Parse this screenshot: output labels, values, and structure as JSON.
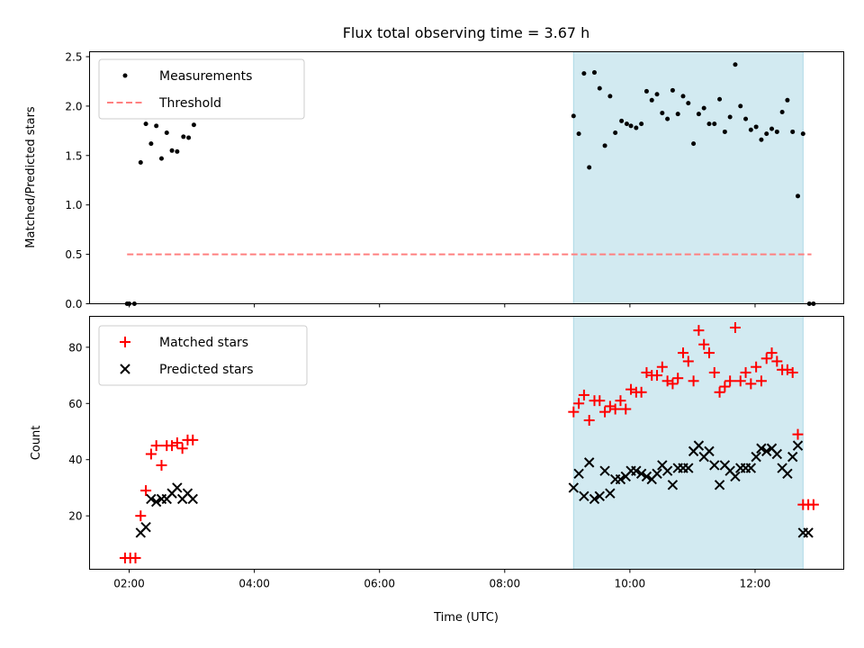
{
  "chart_data": [
    {
      "type": "scatter",
      "title": "Flux total observing time = 3.67 h",
      "ylabel": "Matched/Predicted stars",
      "xlim": [
        "01:22",
        "13:25"
      ],
      "ylim": [
        0,
        2.55
      ],
      "yticks": [
        "0.0",
        "0.5",
        "1.0",
        "1.5",
        "2.0",
        "2.5"
      ],
      "legend_position": "upper-left",
      "shaded_region": {
        "x_start": "09:06",
        "x_end": "12:46",
        "color": "#add8e6"
      },
      "threshold": {
        "name": "Threshold",
        "value": 0.5,
        "x_start": "01:58",
        "x_end": "12:54",
        "color": "#ff8080"
      },
      "series": [
        {
          "name": "Measurements",
          "color": "#000000",
          "x": [
            "01:58",
            "02:00",
            "02:05",
            "02:11",
            "02:16",
            "02:21",
            "02:26",
            "02:31",
            "02:36",
            "02:41",
            "02:46",
            "02:52",
            "02:57",
            "03:02",
            "09:06",
            "09:11",
            "09:16",
            "09:21",
            "09:26",
            "09:31",
            "09:36",
            "09:41",
            "09:46",
            "09:52",
            "09:57",
            "10:01",
            "10:06",
            "10:11",
            "10:16",
            "10:21",
            "10:26",
            "10:31",
            "10:36",
            "10:41",
            "10:46",
            "10:51",
            "10:56",
            "11:01",
            "11:06",
            "11:11",
            "11:16",
            "11:21",
            "11:26",
            "11:31",
            "11:36",
            "11:41",
            "11:46",
            "11:51",
            "11:56",
            "12:01",
            "12:06",
            "12:11",
            "12:16",
            "12:21",
            "12:26",
            "12:31",
            "12:36",
            "12:41",
            "12:46",
            "12:52",
            "12:56"
          ],
          "y": [
            0,
            0,
            0,
            1.43,
            1.82,
            1.62,
            1.8,
            1.47,
            1.73,
            1.55,
            1.54,
            1.69,
            1.68,
            1.81,
            1.9,
            1.72,
            2.33,
            1.38,
            2.34,
            2.18,
            1.6,
            2.1,
            1.73,
            1.85,
            1.82,
            1.8,
            1.78,
            1.82,
            2.15,
            2.06,
            2.12,
            1.93,
            1.87,
            2.16,
            1.92,
            2.1,
            2.03,
            1.62,
            1.92,
            1.98,
            1.82,
            1.82,
            2.07,
            1.74,
            1.89,
            2.42,
            2.0,
            1.87,
            1.76,
            1.79,
            1.66,
            1.72,
            1.77,
            1.74,
            1.94,
            2.06,
            1.74,
            1.09,
            1.72,
            0,
            0
          ]
        }
      ]
    },
    {
      "type": "scatter",
      "xlabel": "Time (UTC)",
      "ylabel": "Count",
      "xlim": [
        "01:22",
        "13:25"
      ],
      "ylim": [
        1,
        91
      ],
      "xticks": [
        "02:00",
        "04:00",
        "06:00",
        "08:00",
        "10:00",
        "12:00"
      ],
      "yticks": [
        "20",
        "40",
        "60",
        "80"
      ],
      "legend_position": "upper-left",
      "shaded_region": {
        "x_start": "09:06",
        "x_end": "12:46",
        "color": "#add8e6"
      },
      "series": [
        {
          "name": "Matched stars",
          "marker": "plus",
          "color": "#ff0000",
          "x": [
            "01:56",
            "02:01",
            "02:06",
            "02:11",
            "02:16",
            "02:21",
            "02:26",
            "02:31",
            "02:36",
            "02:41",
            "02:46",
            "02:51",
            "02:56",
            "03:01",
            "09:06",
            "09:11",
            "09:16",
            "09:21",
            "09:26",
            "09:31",
            "09:36",
            "09:41",
            "09:46",
            "09:51",
            "09:56",
            "10:01",
            "10:06",
            "10:11",
            "10:16",
            "10:21",
            "10:26",
            "10:31",
            "10:36",
            "10:41",
            "10:46",
            "10:51",
            "10:56",
            "11:01",
            "11:06",
            "11:11",
            "11:16",
            "11:21",
            "11:26",
            "11:31",
            "11:36",
            "11:41",
            "11:46",
            "11:51",
            "11:56",
            "12:01",
            "12:06",
            "12:11",
            "12:16",
            "12:21",
            "12:26",
            "12:31",
            "12:36",
            "12:41",
            "12:46",
            "12:51",
            "12:56"
          ],
          "y": [
            5,
            5,
            5,
            20,
            29,
            42,
            45,
            38,
            45,
            45,
            46,
            44,
            47,
            47,
            57,
            60,
            63,
            54,
            61,
            61,
            57,
            59,
            58,
            61,
            58,
            65,
            64,
            64,
            71,
            70,
            70,
            73,
            68,
            67,
            69,
            78,
            75,
            68,
            86,
            81,
            78,
            71,
            64,
            66,
            68,
            87,
            68,
            71,
            67,
            73,
            68,
            76,
            78,
            75,
            72,
            72,
            71,
            49,
            24,
            24,
            24
          ]
        },
        {
          "name": "Predicted stars",
          "marker": "x",
          "color": "#000000",
          "x": [
            "02:11",
            "02:16",
            "02:21",
            "02:26",
            "02:31",
            "02:36",
            "02:41",
            "02:46",
            "02:51",
            "02:56",
            "03:01",
            "09:06",
            "09:11",
            "09:16",
            "09:21",
            "09:26",
            "09:31",
            "09:36",
            "09:41",
            "09:46",
            "09:51",
            "09:56",
            "10:01",
            "10:06",
            "10:11",
            "10:16",
            "10:21",
            "10:26",
            "10:31",
            "10:36",
            "10:41",
            "10:46",
            "10:51",
            "10:56",
            "11:01",
            "11:06",
            "11:11",
            "11:16",
            "11:21",
            "11:26",
            "11:31",
            "11:36",
            "11:41",
            "11:46",
            "11:51",
            "11:56",
            "12:01",
            "12:06",
            "12:11",
            "12:16",
            "12:21",
            "12:26",
            "12:31",
            "12:36",
            "12:41",
            "12:46",
            "12:51"
          ],
          "y": [
            14,
            16,
            26,
            25,
            26,
            26,
            28,
            30,
            26,
            28,
            26,
            30,
            35,
            27,
            39,
            26,
            27,
            36,
            28,
            33,
            33,
            34,
            36,
            36,
            35,
            34,
            33,
            35,
            38,
            36,
            31,
            37,
            37,
            37,
            43,
            45,
            41,
            43,
            38,
            31,
            38,
            36,
            34,
            37,
            37,
            37,
            41,
            44,
            43,
            44,
            42,
            37,
            35,
            41,
            45,
            14,
            14
          ]
        }
      ]
    }
  ]
}
